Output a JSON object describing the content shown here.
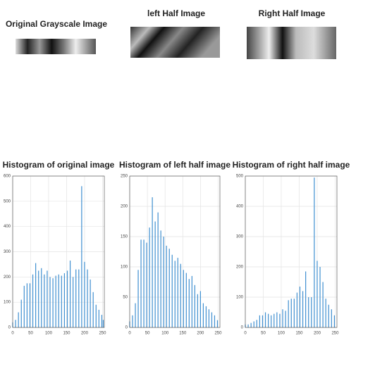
{
  "images": [
    {
      "title": "Original Grayscale Image"
    },
    {
      "title": "left Half Image"
    },
    {
      "title": "Right Half Image"
    }
  ],
  "chart_data": [
    {
      "type": "bar",
      "title": "Histogram of original image",
      "color": "#3f8fd0",
      "grid": true,
      "x": [
        0,
        8,
        16,
        24,
        32,
        40,
        48,
        56,
        64,
        72,
        80,
        88,
        96,
        104,
        112,
        120,
        128,
        136,
        144,
        152,
        160,
        168,
        176,
        184,
        192,
        200,
        208,
        216,
        224,
        232,
        240,
        248,
        252
      ],
      "values": [
        20,
        30,
        60,
        110,
        165,
        175,
        175,
        210,
        255,
        225,
        235,
        210,
        225,
        200,
        195,
        205,
        210,
        205,
        215,
        225,
        265,
        200,
        230,
        230,
        560,
        260,
        230,
        190,
        140,
        90,
        70,
        50,
        30
      ],
      "xlim": [
        0,
        255
      ],
      "xticks": [
        0,
        50,
        100,
        150,
        200,
        250
      ],
      "ylim": [
        0,
        600
      ],
      "yticks": [
        0,
        100,
        200,
        300,
        400,
        500,
        600
      ]
    },
    {
      "type": "bar",
      "title": "Histogram of left half image",
      "color": "#3f8fd0",
      "grid": true,
      "x": [
        0,
        8,
        16,
        24,
        32,
        40,
        48,
        56,
        64,
        72,
        80,
        88,
        96,
        104,
        112,
        120,
        128,
        136,
        144,
        152,
        160,
        168,
        176,
        184,
        192,
        200,
        208,
        216,
        224,
        232,
        240,
        248
      ],
      "values": [
        10,
        20,
        40,
        95,
        145,
        145,
        140,
        165,
        215,
        175,
        190,
        160,
        150,
        135,
        130,
        120,
        110,
        115,
        105,
        95,
        90,
        80,
        85,
        70,
        55,
        60,
        40,
        35,
        30,
        25,
        20,
        12
      ],
      "xlim": [
        0,
        255
      ],
      "xticks": [
        0,
        50,
        100,
        150,
        200,
        250
      ],
      "ylim": [
        0,
        250
      ],
      "yticks": [
        0,
        50,
        100,
        150,
        200,
        250
      ]
    },
    {
      "type": "bar",
      "title": "Histogram of right half image",
      "color": "#3f8fd0",
      "grid": true,
      "x": [
        0,
        8,
        16,
        24,
        32,
        40,
        48,
        56,
        64,
        72,
        80,
        88,
        96,
        104,
        112,
        120,
        128,
        136,
        144,
        152,
        160,
        168,
        176,
        184,
        192,
        200,
        208,
        216,
        224,
        232,
        240,
        248
      ],
      "values": [
        10,
        10,
        15,
        20,
        25,
        40,
        40,
        50,
        45,
        40,
        45,
        50,
        45,
        60,
        55,
        90,
        95,
        95,
        115,
        135,
        120,
        185,
        100,
        100,
        495,
        220,
        200,
        150,
        95,
        75,
        60,
        40
      ],
      "xlim": [
        0,
        255
      ],
      "xticks": [
        0,
        50,
        100,
        150,
        200,
        250
      ],
      "ylim": [
        0,
        500
      ],
      "yticks": [
        0,
        100,
        200,
        300,
        400,
        500
      ]
    }
  ]
}
